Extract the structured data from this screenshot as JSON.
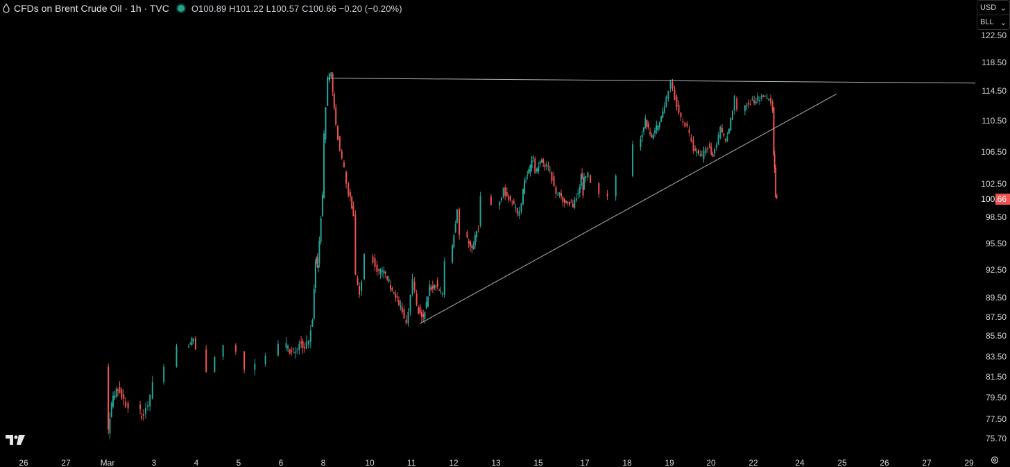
{
  "header": {
    "title": "CFDs on Brent Crude Oil · 1h · TVC",
    "ohlc": "O100.89 H101.22 L100.57 C100.66 −0.20 (−0.20%)"
  },
  "currency_selector": {
    "currency": "USD",
    "unit": "BLL"
  },
  "last_price_label": "100.66",
  "colors": {
    "up": "#26a69a",
    "down": "#ef5350",
    "background": "#000000",
    "last_price_tag": "#ef5350",
    "trendline": "#b2b5be"
  },
  "icons": [
    "oil-drop-icon",
    "tradingview-logo-icon",
    "settings-icon",
    "chevron-down-icon"
  ],
  "chart_data": {
    "type": "candlestick",
    "title": "CFDs on Brent Crude Oil · 1h · TVC",
    "ylim": [
      74.5,
      124.5
    ],
    "y_ticks": [
      "75.70",
      "77.50",
      "79.50",
      "81.50",
      "83.50",
      "85.50",
      "87.50",
      "89.50",
      "92.50",
      "95.50",
      "98.50",
      "102.50",
      "106.50",
      "110.50",
      "114.50",
      "118.50",
      "122.50"
    ],
    "x_ticks": [
      "26",
      "27",
      "Mar",
      "3",
      "4",
      "5",
      "6",
      "8",
      "10",
      "11",
      "12",
      "13",
      "15",
      "17",
      "18",
      "19",
      "20",
      "22",
      "24",
      "25",
      "26",
      "27",
      "29"
    ],
    "last_price": 100.66,
    "path": [
      [
        "26",
        0.0,
        82.5
      ],
      [
        "26",
        0.05,
        76.5
      ],
      [
        "26",
        0.15,
        79.0
      ],
      [
        "26",
        0.35,
        80.5
      ],
      [
        "26",
        0.6,
        79.0
      ],
      [
        "27",
        0.0,
        78.5
      ],
      [
        "27",
        0.2,
        77.6
      ],
      [
        "27",
        0.5,
        78.5
      ],
      [
        "27",
        0.8,
        79.4
      ],
      [
        "Mar",
        0.2,
        81.0
      ],
      [
        "Mar",
        0.5,
        82.5
      ],
      [
        "Mar",
        0.8,
        84.5
      ],
      [
        "Mar",
        0.95,
        85.3
      ],
      [
        "3",
        0.2,
        84.2
      ],
      [
        "3",
        0.4,
        82.0
      ],
      [
        "3",
        0.6,
        83.5
      ],
      [
        "3",
        0.9,
        84.6
      ],
      [
        "4",
        0.1,
        84.0
      ],
      [
        "4",
        0.35,
        82.2
      ],
      [
        "4",
        0.6,
        82.8
      ],
      [
        "4",
        0.9,
        83.6
      ],
      [
        "5",
        0.2,
        84.7
      ],
      [
        "5",
        0.45,
        84.0
      ],
      [
        "5",
        0.7,
        84.2
      ],
      [
        "5",
        0.9,
        84.8
      ],
      [
        "6",
        0.2,
        84.3
      ],
      [
        "6",
        0.5,
        85.1
      ],
      [
        "6",
        0.75,
        87.5
      ],
      [
        "6",
        0.95,
        93.0
      ],
      [
        "7",
        0.0,
        93.7
      ],
      [
        "7",
        0.15,
        92.7
      ],
      [
        "7",
        0.25,
        93.4
      ],
      [
        "8",
        0.0,
        101.0
      ],
      [
        "8",
        0.05,
        108.5
      ],
      [
        "8",
        0.18,
        116.3
      ],
      [
        "8",
        0.3,
        116.8
      ],
      [
        "8",
        0.4,
        112.0
      ],
      [
        "8",
        0.6,
        106.5
      ],
      [
        "8",
        0.75,
        104.3
      ],
      [
        "8",
        0.9,
        101.5
      ],
      [
        "9",
        0.1,
        99.0
      ],
      [
        "9",
        0.25,
        92.0
      ],
      [
        "9",
        0.45,
        90.0
      ],
      [
        "9",
        0.6,
        91.5
      ],
      [
        "10",
        0.05,
        94.3
      ],
      [
        "10",
        0.2,
        92.6
      ],
      [
        "10",
        0.4,
        92.0
      ],
      [
        "10",
        0.6,
        90.0
      ],
      [
        "10",
        0.8,
        88.0
      ],
      [
        "10",
        0.9,
        86.5
      ],
      [
        "11",
        0.05,
        91.2
      ],
      [
        "11",
        0.15,
        88.5
      ],
      [
        "11",
        0.3,
        87.3
      ],
      [
        "11",
        0.45,
        90.5
      ],
      [
        "11",
        0.6,
        91.0
      ],
      [
        "11",
        0.75,
        89.8
      ],
      [
        "11",
        0.95,
        93.5
      ],
      [
        "12",
        0.1,
        99.5
      ],
      [
        "12",
        0.3,
        96.5
      ],
      [
        "12",
        0.45,
        95.0
      ],
      [
        "12",
        0.6,
        97.5
      ],
      [
        "12",
        0.85,
        101.0
      ],
      [
        "13",
        0.1,
        100.0
      ],
      [
        "13",
        0.3,
        101.8
      ],
      [
        "13",
        0.55,
        100.5
      ],
      [
        "13",
        0.8,
        99.0
      ],
      [
        "13",
        0.95,
        100.0
      ],
      [
        "14",
        0.1,
        103.0
      ],
      [
        "14",
        0.3,
        103.5
      ],
      [
        "14",
        0.5,
        104.8
      ],
      [
        "14",
        0.7,
        105.8
      ],
      [
        "14",
        0.85,
        104.0
      ],
      [
        "15",
        0.1,
        105.5
      ],
      [
        "15",
        0.3,
        104.0
      ],
      [
        "15",
        0.45,
        101.5
      ],
      [
        "15",
        0.65,
        100.5
      ],
      [
        "15",
        0.85,
        100.0
      ],
      [
        "16",
        0.15,
        102.3
      ],
      [
        "16",
        0.35,
        103.5
      ],
      [
        "16",
        0.55,
        103.0
      ],
      [
        "16",
        0.75,
        101.5
      ],
      [
        "16",
        0.95,
        103.0
      ],
      [
        "17",
        0.1,
        103.6
      ],
      [
        "17",
        0.3,
        102.6
      ],
      [
        "17",
        0.5,
        101.3
      ],
      [
        "17",
        0.7,
        101.0
      ],
      [
        "18",
        0.1,
        103.5
      ],
      [
        "18",
        0.3,
        107.5
      ],
      [
        "18",
        0.45,
        110.5
      ],
      [
        "18",
        0.6,
        108.5
      ],
      [
        "18",
        0.75,
        110.0
      ],
      [
        "18",
        0.9,
        112.5
      ],
      [
        "19",
        0.0,
        114.5
      ],
      [
        "19",
        0.05,
        115.8
      ],
      [
        "19",
        0.15,
        113.5
      ],
      [
        "19",
        0.3,
        110.7
      ],
      [
        "19",
        0.45,
        109.6
      ],
      [
        "19",
        0.6,
        107.0
      ],
      [
        "19",
        0.8,
        106.0
      ],
      [
        "19",
        0.95,
        107.2
      ],
      [
        "20",
        0.1,
        106.0
      ],
      [
        "20",
        0.25,
        107.5
      ],
      [
        "20",
        0.4,
        109.5
      ],
      [
        "20",
        0.6,
        108.0
      ],
      [
        "20",
        0.8,
        110.5
      ],
      [
        "20",
        0.95,
        113.5
      ],
      [
        "21",
        0.2,
        112.0
      ],
      [
        "21",
        0.35,
        113.0
      ],
      [
        "21",
        0.55,
        113.3
      ],
      [
        "21",
        0.75,
        114.0
      ],
      [
        "21",
        0.9,
        113.4
      ],
      [
        "22",
        0.0,
        112.0
      ],
      [
        "22",
        0.05,
        106.0
      ],
      [
        "22",
        0.12,
        104.8
      ],
      [
        "22",
        0.2,
        101.0
      ],
      [
        "22",
        0.28,
        100.66
      ]
    ]
  },
  "annotations": {
    "resistance_line": {
      "from": [
        "8",
        0.12,
        116.3
      ],
      "to": [
        "25",
        0.99,
        115.6
      ]
    },
    "support_line": {
      "from": [
        "11",
        0.2,
        86.8
      ],
      "to": [
        "24",
        0.9,
        114.1
      ]
    }
  }
}
